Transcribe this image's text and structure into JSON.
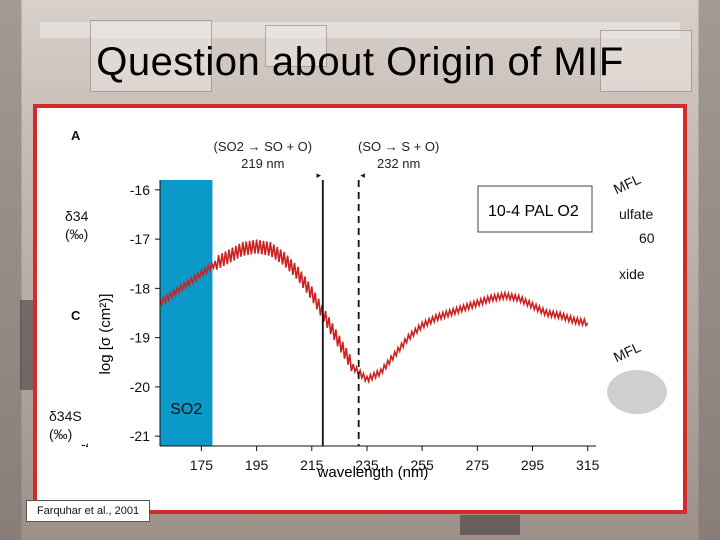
{
  "slide": {
    "title": "Question about Origin of MIF",
    "citation": "Farquhar et al., 2001"
  },
  "background_panel": {
    "label_a": "A",
    "label_c": "C",
    "d34s_top": "δ34S",
    "permil_top": "(‰)",
    "d34s_bottom": "δ34S",
    "permil_bottom": "(‰)",
    "minus4": "-4",
    "mfl_top": "MFL",
    "sulfate": "ulfate",
    "sixty": "60",
    "oxide": "xide",
    "mfl_bottom": "MFL"
  },
  "chart_data": {
    "type": "line",
    "ylabel": "log [σ (cm²)]",
    "xlabel": "wavelength (nm)",
    "xlim": [
      160,
      318
    ],
    "ylim": [
      -21.2,
      -15.8
    ],
    "x_ticks": [
      175,
      195,
      215,
      235,
      255,
      275,
      295,
      315
    ],
    "y_ticks": [
      -16,
      -17,
      -18,
      -19,
      -20,
      -21
    ],
    "legend_box": "10-4 PAL O2",
    "shaded_band": {
      "from": 160,
      "to": 179,
      "color": "#0b99c9",
      "label": "SO2"
    },
    "markers": [
      {
        "x": 219,
        "style": "solid",
        "reaction": "(SO2 → SO + O)",
        "wavelength": "219 nm"
      },
      {
        "x": 232,
        "style": "dashed",
        "reaction": "(SO → S + O)",
        "wavelength": "232 nm"
      }
    ],
    "series": [
      {
        "color": "#cc2222",
        "x": [
          160,
          165,
          170,
          175,
          180,
          185,
          190,
          195,
          200,
          205,
          210,
          215,
          220,
          225,
          230,
          235,
          240,
          245,
          250,
          255,
          260,
          265,
          270,
          275,
          280,
          285,
          290,
          295,
          300,
          305,
          310,
          315
        ],
        "y": [
          -18.3,
          -18.1,
          -17.9,
          -17.7,
          -17.5,
          -17.35,
          -17.2,
          -17.15,
          -17.2,
          -17.4,
          -17.7,
          -18.1,
          -18.6,
          -19.1,
          -19.6,
          -19.85,
          -19.7,
          -19.35,
          -19.0,
          -18.75,
          -18.6,
          -18.5,
          -18.4,
          -18.3,
          -18.2,
          -18.15,
          -18.2,
          -18.35,
          -18.5,
          -18.55,
          -18.65,
          -18.7
        ]
      }
    ]
  },
  "colors": {
    "frame": "#d42a2a",
    "band": "#0b99c9",
    "series": "#cc2222"
  }
}
